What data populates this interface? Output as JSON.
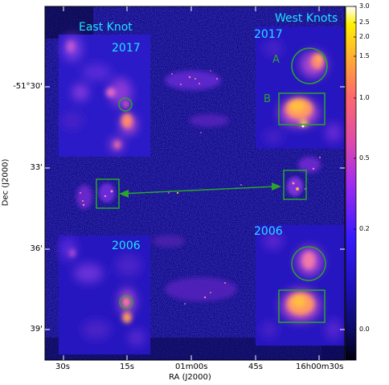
{
  "labels": {
    "east_title": "East Knot",
    "west_title": "West Knots",
    "east_top_year": "2017",
    "east_bottom_year": "2006",
    "west_top_year": "2017",
    "west_bottom_year": "2006",
    "region_a": "A",
    "region_b": "B"
  },
  "axes": {
    "ylabel": "Dec (J2000)",
    "xlabel": "RA (J2000)",
    "yticks": [
      "-51°30'",
      "33'",
      "36'",
      "39'"
    ],
    "xticks": [
      "30s",
      "15s",
      "01m00s",
      "45s",
      "16h00m30s"
    ]
  },
  "colorbar": {
    "ticks": [
      "3.0",
      "2.5",
      "2.0",
      "1.5",
      "1.0",
      "0.5",
      "0.2",
      "0.0"
    ]
  },
  "colors": {
    "annotation": "#2aa52a",
    "text_overlay": "#1fe3ff"
  }
}
